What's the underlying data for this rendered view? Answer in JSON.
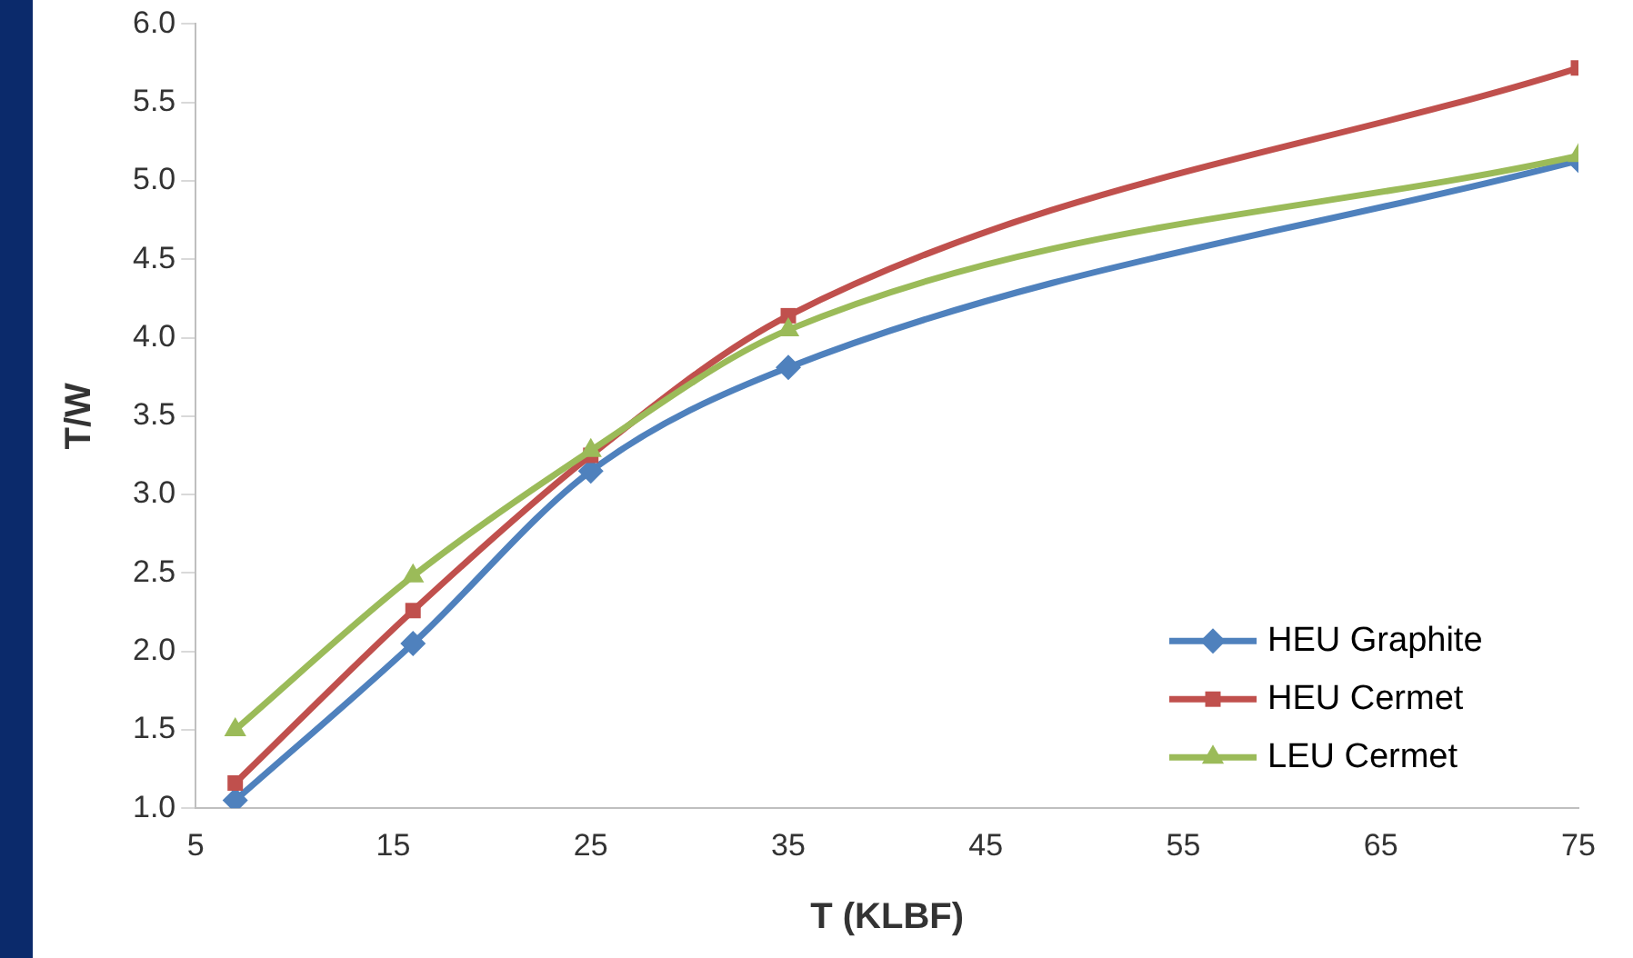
{
  "chart_data": {
    "type": "line",
    "xlabel": "T (KLBF)",
    "ylabel": "T/W",
    "x": [
      7,
      16,
      25,
      35,
      75
    ],
    "series": [
      {
        "name": "HEU Graphite",
        "color": "#4f81bd",
        "marker": "diamond",
        "values": [
          1.05,
          2.05,
          3.15,
          3.81,
          5.13
        ]
      },
      {
        "name": "HEU Cermet",
        "color": "#c0504d",
        "marker": "square",
        "values": [
          1.16,
          2.26,
          3.25,
          4.14,
          5.72
        ]
      },
      {
        "name": "LEU Cermet",
        "color": "#9bbb59",
        "marker": "triangle",
        "values": [
          1.5,
          2.48,
          3.28,
          4.05,
          5.16
        ]
      }
    ],
    "xlim": [
      5,
      75
    ],
    "xticks": [
      5,
      15,
      25,
      35,
      45,
      55,
      65,
      75
    ],
    "ylim": [
      1.0,
      6.0
    ],
    "yticks": [
      {
        "value": 1,
        "label": "1.0"
      },
      {
        "value": 1.5,
        "label": "1.5"
      },
      {
        "value": 2,
        "label": "2.0"
      },
      {
        "value": 2.5,
        "label": "2.5"
      },
      {
        "value": 3,
        "label": "3.0"
      },
      {
        "value": 3.5,
        "label": "3.5"
      },
      {
        "value": 4,
        "label": "4.0"
      },
      {
        "value": 4.5,
        "label": "4.5"
      },
      {
        "value": 5,
        "label": "5.0"
      },
      {
        "value": 5.5,
        "label": "5.5"
      },
      {
        "value": 6,
        "label": "6.0"
      }
    ],
    "grid": false,
    "legend": "bottom right",
    "line_style": "solid"
  }
}
